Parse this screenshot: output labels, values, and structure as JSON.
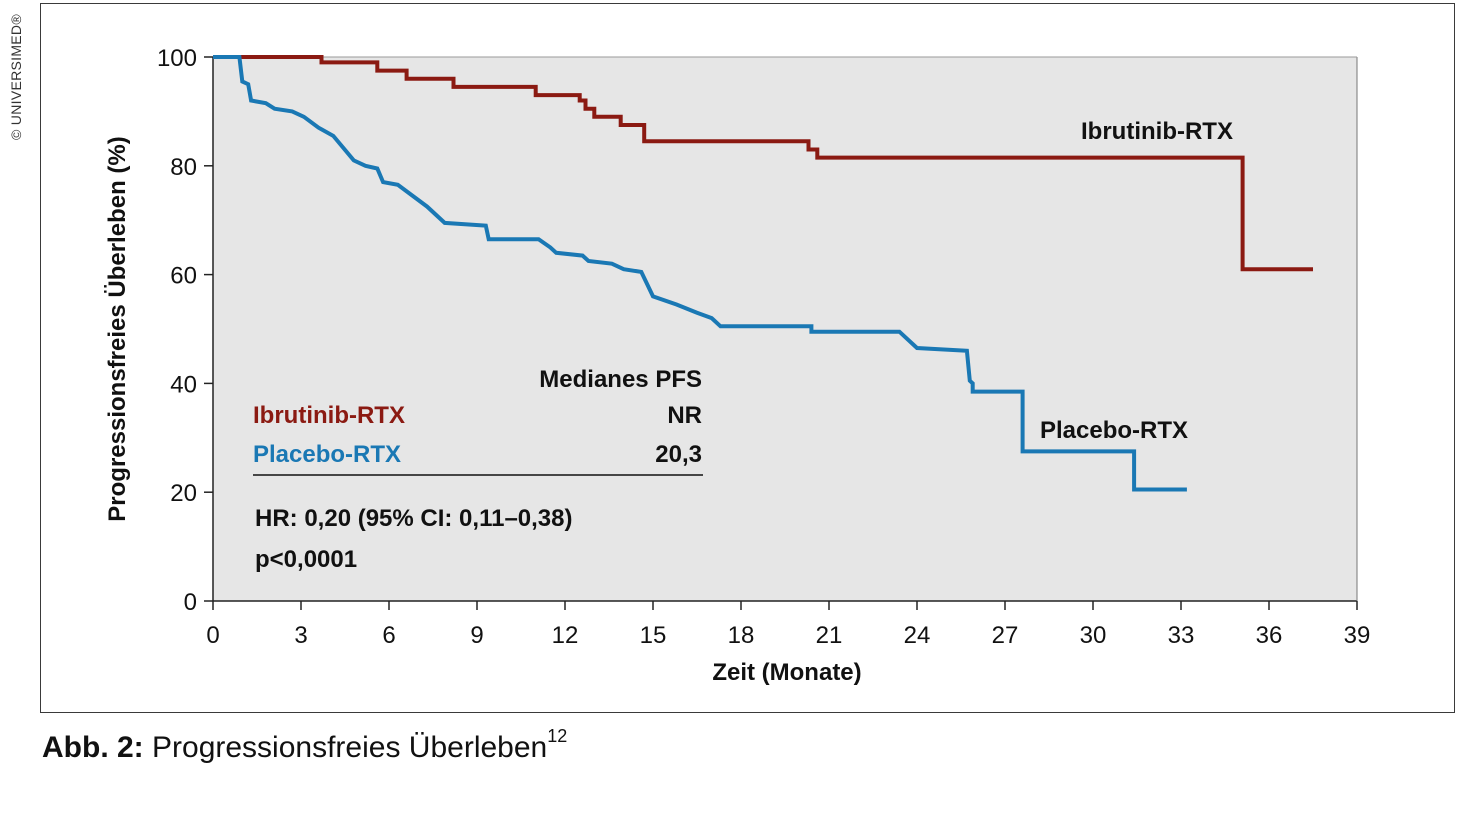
{
  "copyright": "© UNIVERSIMED®",
  "caption": {
    "label": "Abb. 2:",
    "text": "Progressionsfreies Überleben",
    "superscript": "12"
  },
  "colors": {
    "ibrutinib": "#8b1a12",
    "placebo": "#1a78b4",
    "plot_bg": "#e6e6e6"
  },
  "chart_data": {
    "type": "line",
    "subtype": "kaplan-meier step",
    "xlabel": "Zeit (Monate)",
    "ylabel": "Progressionsfreies Überleben (%)",
    "xlim": [
      0,
      39
    ],
    "ylim": [
      0,
      100
    ],
    "xticks": [
      0,
      3,
      6,
      9,
      12,
      15,
      18,
      21,
      24,
      27,
      30,
      33,
      36,
      39
    ],
    "yticks": [
      0,
      20,
      40,
      60,
      80,
      100
    ],
    "series": [
      {
        "name": "Ibrutinib-RTX",
        "color": "#8b1a12",
        "points": [
          [
            0,
            100
          ],
          [
            3.7,
            100
          ],
          [
            3.7,
            99
          ],
          [
            5.6,
            99
          ],
          [
            5.6,
            97.5
          ],
          [
            6.6,
            97.5
          ],
          [
            6.6,
            96
          ],
          [
            8.2,
            96
          ],
          [
            8.2,
            94.5
          ],
          [
            11.0,
            94.5
          ],
          [
            11.0,
            93
          ],
          [
            12.5,
            93
          ],
          [
            12.5,
            92
          ],
          [
            12.7,
            92
          ],
          [
            12.7,
            90.5
          ],
          [
            13.0,
            90.5
          ],
          [
            13.0,
            89
          ],
          [
            13.9,
            89
          ],
          [
            13.9,
            87.5
          ],
          [
            14.7,
            87.5
          ],
          [
            14.7,
            84.5
          ],
          [
            20.3,
            84.5
          ],
          [
            20.3,
            83
          ],
          [
            20.6,
            83
          ],
          [
            20.6,
            81.5
          ],
          [
            35.1,
            81.5
          ],
          [
            35.1,
            61
          ],
          [
            37.5,
            61
          ]
        ]
      },
      {
        "name": "Placebo-RTX",
        "color": "#1a78b4",
        "points": [
          [
            0,
            100
          ],
          [
            0.9,
            100
          ],
          [
            1.0,
            95.5
          ],
          [
            1.2,
            95
          ],
          [
            1.3,
            92
          ],
          [
            1.8,
            91.5
          ],
          [
            2.1,
            90.5
          ],
          [
            2.7,
            90
          ],
          [
            3.1,
            89
          ],
          [
            3.6,
            87
          ],
          [
            4.1,
            85.5
          ],
          [
            4.8,
            81
          ],
          [
            5.2,
            80
          ],
          [
            5.6,
            79.5
          ],
          [
            5.8,
            77
          ],
          [
            6.3,
            76.5
          ],
          [
            7.3,
            72.5
          ],
          [
            7.9,
            69.5
          ],
          [
            9.3,
            69
          ],
          [
            9.4,
            66.5
          ],
          [
            11.1,
            66.5
          ],
          [
            11.5,
            65
          ],
          [
            11.7,
            64
          ],
          [
            12.6,
            63.5
          ],
          [
            12.8,
            62.5
          ],
          [
            13.6,
            62
          ],
          [
            14.0,
            61
          ],
          [
            14.6,
            60.5
          ],
          [
            15.0,
            56
          ],
          [
            15.8,
            54.5
          ],
          [
            16.5,
            53
          ],
          [
            17.0,
            52
          ],
          [
            17.3,
            50.5
          ],
          [
            20.4,
            50.5
          ],
          [
            20.4,
            49.5
          ],
          [
            23.4,
            49.5
          ],
          [
            24.0,
            46.5
          ],
          [
            25.7,
            46
          ],
          [
            25.8,
            40.5
          ],
          [
            25.9,
            40
          ],
          [
            25.9,
            38.5
          ],
          [
            27.6,
            38.5
          ],
          [
            27.6,
            27.5
          ],
          [
            31.4,
            27.5
          ],
          [
            31.4,
            20.5
          ],
          [
            33.2,
            20.5
          ]
        ]
      }
    ],
    "curve_labels": [
      "Ibrutinib-RTX",
      "Placebo-RTX"
    ],
    "legend_table": {
      "header": "Medianes PFS",
      "rows": [
        {
          "name": "Ibrutinib-RTX",
          "value": "NR"
        },
        {
          "name": "Placebo-RTX",
          "value": "20,3"
        }
      ],
      "hr": "HR: 0,20 (95% CI: 0,11–0,38)",
      "p": "p<0,0001"
    }
  }
}
